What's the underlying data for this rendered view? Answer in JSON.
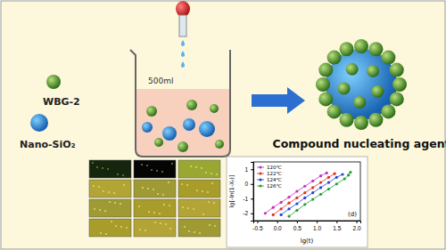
{
  "diagram": {
    "wbg_label": "WBG-2",
    "nano_label": "Nano-SiO₂",
    "volume_label": "500ml",
    "product_label": "Compound nucleating agent"
  },
  "chart_data": {
    "type": "scatter",
    "marker": "circle",
    "line_style": "solid",
    "legend": "top-left",
    "x_label": "lg(t)",
    "y_label": "lg[-ln(1-Xₜ)]",
    "annotation": "(d)",
    "xlim": [
      -0.6,
      2.1
    ],
    "ylim": [
      -2.5,
      1.5
    ],
    "xticks": [
      -0.5,
      {
        "value": 0,
        "label": "0.0"
      },
      0.5,
      {
        "value": 1,
        "label": "1.0"
      },
      1.5,
      {
        "value": 2,
        "label": "2.0"
      }
    ],
    "yticks": [
      -2,
      -1,
      0,
      1
    ],
    "series": [
      {
        "name": "120℃",
        "color": "#c030c0",
        "x": [
          -0.3,
          -0.1,
          0.1,
          0.3,
          0.5,
          0.7,
          0.9,
          1.1,
          1.25
        ],
        "values": [
          -2.0,
          -1.6,
          -1.25,
          -0.9,
          -0.5,
          -0.15,
          0.2,
          0.55,
          0.75
        ]
      },
      {
        "name": "122℃",
        "color": "#e03020",
        "x": [
          -0.1,
          0.1,
          0.3,
          0.5,
          0.7,
          0.9,
          1.1,
          1.3,
          1.45
        ],
        "values": [
          -2.1,
          -1.7,
          -1.3,
          -0.95,
          -0.6,
          -0.25,
          0.1,
          0.45,
          0.7
        ]
      },
      {
        "name": "124℃",
        "color": "#2040e0",
        "x": [
          0.1,
          0.3,
          0.5,
          0.7,
          0.9,
          1.1,
          1.3,
          1.5,
          1.65
        ],
        "values": [
          -2.1,
          -1.7,
          -1.35,
          -0.95,
          -0.6,
          -0.25,
          0.1,
          0.45,
          0.65
        ]
      },
      {
        "name": "126℃",
        "color": "#20a030",
        "x": [
          0.3,
          0.5,
          0.7,
          0.9,
          1.1,
          1.3,
          1.5,
          1.7,
          1.8,
          1.85
        ],
        "values": [
          -2.2,
          -1.8,
          -1.4,
          -1.05,
          -0.7,
          -0.35,
          0.0,
          0.35,
          0.6,
          0.8
        ]
      }
    ]
  }
}
